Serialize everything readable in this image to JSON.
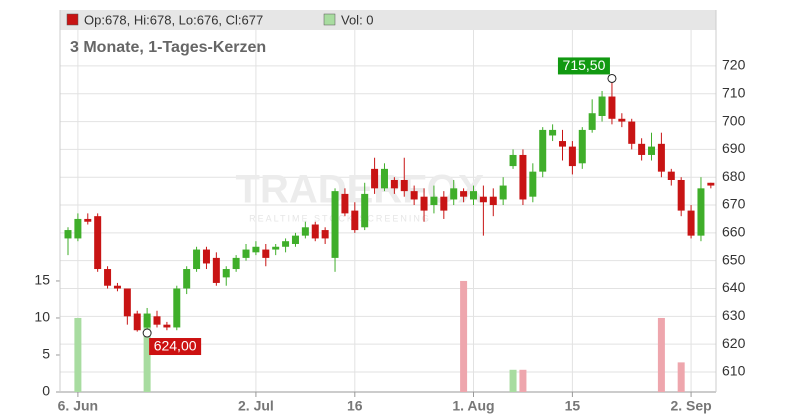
{
  "chart_data": {
    "type": "candlestick",
    "ohlc_label": "Op:678, Hi:678, Lo:676, Cl:677",
    "volume_label": "Vol: 0",
    "subtitle": "3 Monate, 1-Tages-Kerzen",
    "watermark": "TRADERFOX",
    "watermark_sub": "REALTIME STOCK SCREENING",
    "categories": [
      null,
      "6. Jun",
      null,
      null,
      null,
      null,
      null,
      null,
      null,
      null,
      null,
      null,
      null,
      null,
      null,
      null,
      null,
      null,
      null,
      "2. Jul",
      null,
      null,
      null,
      null,
      null,
      null,
      null,
      null,
      null,
      "16",
      null,
      null,
      null,
      null,
      null,
      null,
      null,
      null,
      null,
      null,
      null,
      "1. Aug",
      null,
      null,
      null,
      null,
      null,
      null,
      null,
      null,
      null,
      "15",
      null,
      null,
      null,
      null,
      null,
      null,
      null,
      null,
      null,
      null,
      null,
      "2. Sep",
      null,
      null
    ],
    "open": [
      658,
      658,
      665,
      666,
      647,
      641,
      640,
      631,
      626,
      630,
      627,
      626,
      640,
      647,
      654,
      651,
      644,
      647,
      651,
      653,
      654,
      654,
      655,
      656,
      659,
      663,
      661,
      651,
      674,
      668,
      662,
      683,
      676,
      679,
      679,
      675,
      673,
      670,
      673,
      672,
      675,
      672,
      673,
      673,
      672,
      684,
      688,
      673,
      682,
      695,
      693,
      691,
      685,
      697,
      702,
      709,
      701,
      700,
      692,
      688,
      692,
      682,
      679,
      668,
      659,
      678
    ],
    "high": [
      662,
      667,
      667,
      667,
      648,
      642,
      640,
      632,
      633,
      632,
      628,
      641,
      648,
      655,
      655,
      653,
      648,
      652,
      656,
      657,
      656,
      656,
      658,
      660,
      664,
      664,
      662,
      676,
      676,
      671,
      678,
      687,
      685,
      680,
      687,
      677,
      676,
      677,
      675,
      679,
      676,
      677,
      677,
      676,
      680,
      690,
      690,
      685,
      698,
      699,
      697,
      693,
      698,
      708,
      711,
      715.5,
      703,
      701,
      694,
      696,
      696,
      683,
      680,
      670,
      680,
      678
    ],
    "low": [
      652,
      657,
      663,
      646,
      640,
      639,
      627,
      624.5,
      624,
      626,
      625,
      625,
      638,
      646,
      647,
      641,
      641,
      646,
      650,
      652,
      648,
      652,
      653,
      655,
      658,
      657,
      656,
      646,
      666,
      660,
      661,
      674,
      675,
      674,
      673,
      670,
      664,
      667,
      665,
      670,
      671,
      670,
      659,
      666,
      670,
      683,
      670,
      671,
      680,
      693,
      686,
      681,
      683,
      696,
      700,
      699,
      698,
      690,
      686,
      686,
      680,
      677,
      666,
      658,
      657,
      676
    ],
    "close": [
      661,
      665,
      664,
      647,
      641,
      640,
      630,
      625,
      631,
      627,
      626,
      640,
      647,
      654,
      649,
      642,
      647,
      651,
      654,
      655,
      651,
      655,
      657,
      659,
      662,
      658,
      658,
      675,
      667,
      661,
      674,
      676,
      683,
      676,
      675,
      672,
      668,
      673,
      668,
      676,
      673,
      675,
      671,
      670,
      677,
      688,
      672,
      682,
      697,
      697,
      691,
      684,
      697,
      703,
      709,
      701,
      700,
      692,
      688,
      691,
      682,
      679,
      668,
      659,
      676,
      677
    ],
    "volume": [
      0,
      10,
      0,
      0,
      0,
      0,
      0,
      0,
      10,
      0,
      0,
      0,
      0,
      0,
      0,
      0,
      0,
      0,
      0,
      0,
      0,
      0,
      0,
      0,
      0,
      0,
      0,
      0,
      0,
      0,
      0,
      0,
      0,
      0,
      0,
      0,
      0,
      0,
      0,
      0,
      15,
      0,
      0,
      0,
      0,
      3,
      3,
      0,
      0,
      0,
      0,
      0,
      0,
      0,
      0,
      0,
      0,
      0,
      0,
      0,
      10,
      0,
      4,
      0,
      0,
      0
    ],
    "up_color": "#3fae2a",
    "down_color": "#c81414",
    "up_volume_color": "#a8dca0",
    "down_volume_color": "#eea6ad",
    "ylim": [
      602.8,
      740.1
    ],
    "yticks": [
      610,
      620,
      630,
      640,
      650,
      660,
      670,
      680,
      690,
      700,
      710,
      720
    ],
    "volume_ylim": [
      0,
      51.6
    ],
    "volume_ticks": [
      0,
      5,
      10,
      15
    ],
    "annotations": [
      {
        "text": "715,50",
        "index": 55,
        "value": 715.5,
        "color": "#119911"
      },
      {
        "text": "624,00",
        "index": 8,
        "value": 624,
        "color": "#cc1111"
      }
    ],
    "grid": true
  }
}
